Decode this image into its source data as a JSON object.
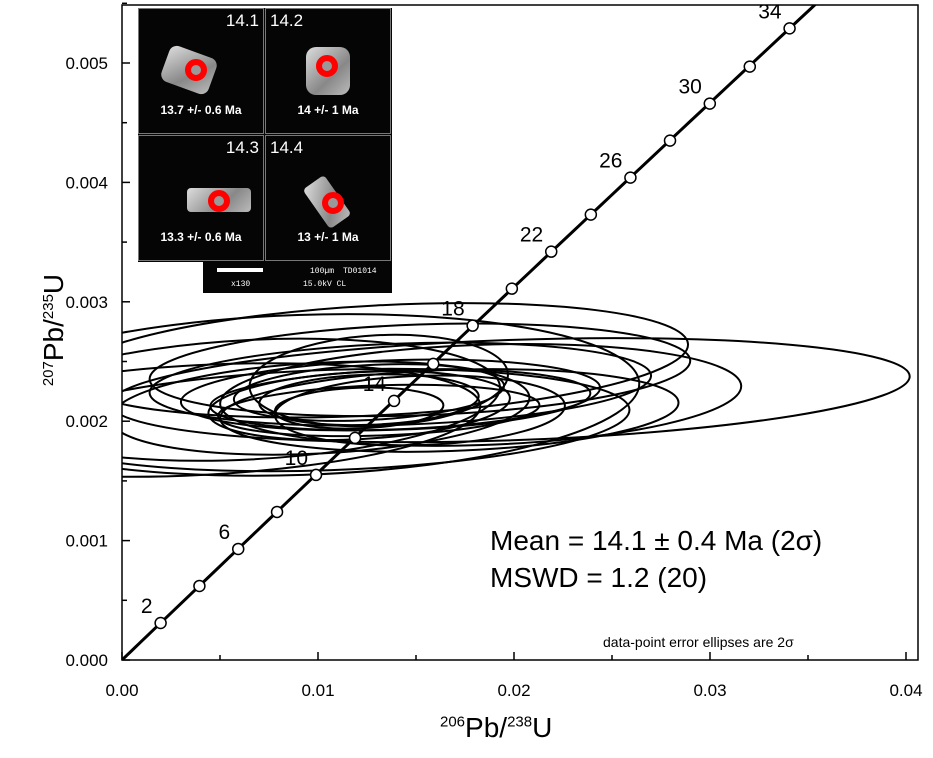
{
  "chart_data": {
    "type": "scatter",
    "subtype": "concordia-with-error-ellipses",
    "xlabel": {
      "sup": "206",
      "main": "Pb/",
      "sup2": "238",
      "main2": "U"
    },
    "ylabel": {
      "sup": "207",
      "main": "Pb/",
      "sup2": "235",
      "main2": "U"
    },
    "xlim": [
      0,
      0.04
    ],
    "ylim": [
      0,
      0.0055
    ],
    "x_ticks": [
      "0.00",
      "0.01",
      "0.02",
      "0.03",
      "0.04"
    ],
    "x_tick_values": [
      0,
      0.01,
      0.02,
      0.03,
      0.04
    ],
    "y_ticks": [
      "0.000",
      "0.001",
      "0.002",
      "0.003",
      "0.004",
      "0.005"
    ],
    "y_tick_values": [
      0,
      0.001,
      0.002,
      0.003,
      0.004,
      0.005
    ],
    "grid": false,
    "concordia": {
      "ages_ma": [
        2,
        4,
        6,
        8,
        10,
        12,
        14,
        16,
        18,
        20,
        22,
        24,
        26,
        28,
        30,
        32,
        34
      ],
      "x": [
        0.00197,
        0.00395,
        0.00593,
        0.00791,
        0.0099,
        0.01189,
        0.01388,
        0.01588,
        0.01789,
        0.01989,
        0.0219,
        0.02392,
        0.02594,
        0.02796,
        0.02999,
        0.03203,
        0.03406
      ],
      "y": [
        0.00031,
        0.00062,
        0.00093,
        0.00124,
        0.00155,
        0.00186,
        0.00217,
        0.00248,
        0.0028,
        0.00311,
        0.00342,
        0.00373,
        0.00404,
        0.00435,
        0.00466,
        0.00497,
        0.00529
      ],
      "labeled_ages": [
        "2",
        "6",
        "10",
        "14",
        "18",
        "22",
        "26",
        "30",
        "34"
      ]
    },
    "ellipses": [
      {
        "cx": 0.0198,
        "cy": 0.00226,
        "rx": 0.0204,
        "ry": 0.00042,
        "rot": -2
      },
      {
        "cx": 0.0131,
        "cy": 0.00251,
        "rx": 0.0158,
        "ry": 0.00046,
        "rot": -3
      },
      {
        "cx": 0.0152,
        "cy": 0.00243,
        "rx": 0.0138,
        "ry": 0.00038,
        "rot": -2
      },
      {
        "cx": 0.0142,
        "cy": 0.00231,
        "rx": 0.0128,
        "ry": 0.00034,
        "rot": -2
      },
      {
        "cx": 0.0137,
        "cy": 0.00222,
        "rx": 0.0107,
        "ry": 0.00029,
        "rot": -2
      },
      {
        "cx": 0.0142,
        "cy": 0.00218,
        "rx": 0.0097,
        "ry": 0.00025,
        "rot": -2
      },
      {
        "cx": 0.0126,
        "cy": 0.00224,
        "rx": 0.0069,
        "ry": 0.00023,
        "rot": -3
      },
      {
        "cx": 0.0121,
        "cy": 0.00213,
        "rx": 0.0077,
        "ry": 0.00028,
        "rot": -3
      },
      {
        "cx": 0.0131,
        "cy": 0.00234,
        "rx": 0.0066,
        "ry": 0.00038,
        "rot": -3
      },
      {
        "cx": 0.0126,
        "cy": 0.00218,
        "rx": 0.0056,
        "ry": 0.00021,
        "rot": -2
      },
      {
        "cx": 0.0121,
        "cy": 0.00211,
        "rx": 0.0043,
        "ry": 0.00017,
        "rot": -2
      },
      {
        "cx": 0.0101,
        "cy": 0.00211,
        "rx": 0.0107,
        "ry": 0.00038,
        "rot": -3
      },
      {
        "cx": 0.0065,
        "cy": 0.00218,
        "rx": 0.0128,
        "ry": 0.0005,
        "rot": -3
      },
      {
        "cx": 0.004,
        "cy": 0.00201,
        "rx": 0.0143,
        "ry": 0.00046,
        "rot": -3
      },
      {
        "cx": 0.0167,
        "cy": 0.00209,
        "rx": 0.0117,
        "ry": 0.00034,
        "rot": -2
      },
      {
        "cx": 0.0183,
        "cy": 0.00222,
        "rx": 0.0133,
        "ry": 0.00042,
        "rot": -2
      },
      {
        "cx": 0.0152,
        "cy": 0.00209,
        "rx": 0.0074,
        "ry": 0.00029,
        "rot": -2
      },
      {
        "cx": 0.0091,
        "cy": 0.00222,
        "rx": 0.0173,
        "ry": 0.00067,
        "rot": -2
      },
      {
        "cx": 0.0131,
        "cy": 0.00209,
        "rx": 0.0082,
        "ry": 0.00021,
        "rot": -2
      },
      {
        "cx": 0.0106,
        "cy": 0.00201,
        "rx": 0.0153,
        "ry": 0.00042,
        "rot": -2
      }
    ],
    "annotations": {
      "mean": "Mean = 14.1 ± 0.4 Ma (2σ)",
      "mswd": "MSWD = 1.2 (20)",
      "note": "data-point error ellipses are 2σ"
    },
    "colors": {
      "line": "#000000",
      "spot": "#ff0000",
      "inset_bg": "#050505"
    }
  },
  "inset": {
    "cells": [
      {
        "id": "14.1",
        "age": "13.7 +/-  0.6 Ma"
      },
      {
        "id": "14.2",
        "age": "14 +/- 1 Ma"
      },
      {
        "id": "14.3",
        "age": "13.3 +/- 0.6 Ma"
      },
      {
        "id": "14.4",
        "age": "13 +/- 1 Ma"
      }
    ],
    "scale": {
      "length": "100µm",
      "sample": "TD01014",
      "mag": "x130",
      "kv": "15.0kV CL"
    }
  }
}
